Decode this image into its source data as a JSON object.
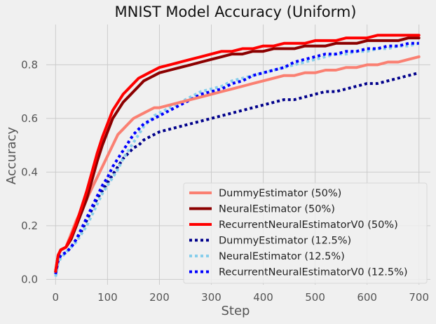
{
  "chart_data": {
    "type": "line",
    "title": "MNIST Model Accuracy (Uniform)",
    "xlabel": "Step",
    "ylabel": "Accuracy",
    "xlim": [
      -18,
      722
    ],
    "ylim": [
      -0.02,
      0.95
    ],
    "x_ticks": [
      0,
      100,
      200,
      300,
      400,
      500,
      600,
      700
    ],
    "y_ticks": [
      0.0,
      0.2,
      0.4,
      0.6,
      0.8
    ],
    "x_tick_labels": [
      "0",
      "100",
      "200",
      "300",
      "400",
      "500",
      "600",
      "700"
    ],
    "y_tick_labels": [
      "0.0",
      "0.2",
      "0.4",
      "0.6",
      "0.8"
    ],
    "grid": true,
    "legend_position": "bottom-right",
    "series": [
      {
        "name": "DummyEstimator (50%)",
        "color": "#fa8072",
        "style": "solid",
        "x": [
          0,
          5,
          10,
          20,
          30,
          40,
          50,
          60,
          70,
          80,
          90,
          100,
          110,
          120,
          130,
          140,
          150,
          160,
          170,
          180,
          190,
          200,
          220,
          240,
          260,
          280,
          300,
          320,
          340,
          360,
          380,
          400,
          420,
          440,
          460,
          480,
          500,
          520,
          540,
          560,
          580,
          600,
          620,
          640,
          660,
          680,
          700
        ],
        "y": [
          0.03,
          0.09,
          0.11,
          0.12,
          0.17,
          0.22,
          0.26,
          0.3,
          0.34,
          0.38,
          0.42,
          0.46,
          0.5,
          0.54,
          0.56,
          0.58,
          0.6,
          0.61,
          0.62,
          0.63,
          0.64,
          0.64,
          0.65,
          0.66,
          0.67,
          0.68,
          0.69,
          0.7,
          0.71,
          0.72,
          0.73,
          0.74,
          0.75,
          0.76,
          0.76,
          0.77,
          0.77,
          0.78,
          0.78,
          0.79,
          0.79,
          0.8,
          0.8,
          0.81,
          0.81,
          0.82,
          0.83
        ]
      },
      {
        "name": "NeuralEstimator (50%)",
        "color": "#8b0000",
        "style": "solid",
        "x": [
          0,
          5,
          10,
          20,
          30,
          40,
          50,
          60,
          70,
          80,
          90,
          100,
          110,
          120,
          130,
          140,
          150,
          160,
          170,
          180,
          190,
          200,
          220,
          240,
          260,
          280,
          300,
          320,
          340,
          360,
          380,
          400,
          420,
          440,
          460,
          480,
          500,
          520,
          540,
          560,
          580,
          600,
          620,
          640,
          660,
          680,
          700
        ],
        "y": [
          0.03,
          0.09,
          0.11,
          0.12,
          0.15,
          0.2,
          0.25,
          0.3,
          0.37,
          0.44,
          0.5,
          0.55,
          0.6,
          0.63,
          0.66,
          0.68,
          0.7,
          0.72,
          0.74,
          0.75,
          0.76,
          0.77,
          0.78,
          0.79,
          0.8,
          0.81,
          0.82,
          0.83,
          0.84,
          0.84,
          0.85,
          0.85,
          0.86,
          0.86,
          0.86,
          0.87,
          0.87,
          0.87,
          0.88,
          0.88,
          0.88,
          0.89,
          0.89,
          0.89,
          0.89,
          0.9,
          0.9
        ]
      },
      {
        "name": "RecurrentNeuralEstimatorV0 (50%)",
        "color": "#ff0000",
        "style": "solid",
        "x": [
          0,
          5,
          10,
          20,
          30,
          40,
          50,
          60,
          70,
          80,
          90,
          100,
          110,
          120,
          130,
          140,
          150,
          160,
          170,
          180,
          190,
          200,
          220,
          240,
          260,
          280,
          300,
          320,
          340,
          360,
          380,
          400,
          420,
          440,
          460,
          480,
          500,
          520,
          540,
          560,
          580,
          600,
          620,
          640,
          660,
          680,
          700
        ],
        "y": [
          0.03,
          0.09,
          0.11,
          0.12,
          0.16,
          0.21,
          0.27,
          0.33,
          0.4,
          0.47,
          0.53,
          0.58,
          0.63,
          0.66,
          0.69,
          0.71,
          0.73,
          0.75,
          0.76,
          0.77,
          0.78,
          0.79,
          0.8,
          0.81,
          0.82,
          0.83,
          0.84,
          0.85,
          0.85,
          0.86,
          0.86,
          0.87,
          0.87,
          0.88,
          0.88,
          0.88,
          0.89,
          0.89,
          0.89,
          0.9,
          0.9,
          0.9,
          0.91,
          0.91,
          0.91,
          0.91,
          0.91
        ]
      },
      {
        "name": "DummyEstimator (12.5%)",
        "color": "#00008b",
        "style": "dotted",
        "x": [
          0,
          5,
          10,
          20,
          30,
          40,
          50,
          60,
          70,
          80,
          90,
          100,
          110,
          120,
          130,
          140,
          150,
          160,
          170,
          180,
          190,
          200,
          220,
          240,
          260,
          280,
          300,
          320,
          340,
          360,
          380,
          400,
          420,
          440,
          460,
          480,
          500,
          520,
          540,
          560,
          580,
          600,
          620,
          640,
          660,
          680,
          700
        ],
        "y": [
          0.02,
          0.07,
          0.09,
          0.1,
          0.12,
          0.15,
          0.18,
          0.22,
          0.26,
          0.3,
          0.33,
          0.36,
          0.39,
          0.42,
          0.45,
          0.47,
          0.49,
          0.5,
          0.52,
          0.53,
          0.54,
          0.55,
          0.56,
          0.57,
          0.58,
          0.59,
          0.6,
          0.61,
          0.62,
          0.63,
          0.64,
          0.65,
          0.66,
          0.67,
          0.67,
          0.68,
          0.69,
          0.7,
          0.7,
          0.71,
          0.72,
          0.73,
          0.73,
          0.74,
          0.75,
          0.76,
          0.77
        ]
      },
      {
        "name": "NeuralEstimator (12.5%)",
        "color": "#87ceeb",
        "style": "dotted",
        "x": [
          0,
          5,
          10,
          20,
          30,
          40,
          50,
          60,
          70,
          80,
          90,
          100,
          110,
          120,
          130,
          140,
          150,
          160,
          170,
          180,
          190,
          200,
          220,
          240,
          260,
          280,
          300,
          320,
          340,
          360,
          380,
          400,
          420,
          440,
          460,
          480,
          500,
          520,
          540,
          560,
          580,
          600,
          620,
          640,
          660,
          680,
          700
        ],
        "y": [
          0.01,
          0.06,
          0.08,
          0.1,
          0.12,
          0.14,
          0.17,
          0.2,
          0.24,
          0.28,
          0.32,
          0.35,
          0.38,
          0.41,
          0.45,
          0.48,
          0.51,
          0.54,
          0.57,
          0.59,
          0.61,
          0.62,
          0.64,
          0.66,
          0.68,
          0.7,
          0.71,
          0.72,
          0.74,
          0.75,
          0.76,
          0.77,
          0.78,
          0.79,
          0.8,
          0.81,
          0.82,
          0.83,
          0.84,
          0.84,
          0.85,
          0.85,
          0.86,
          0.86,
          0.87,
          0.87,
          0.88
        ]
      },
      {
        "name": "RecurrentNeuralEstimatorV0 (12.5%)",
        "color": "#0000ff",
        "style": "dotted",
        "x": [
          0,
          5,
          10,
          20,
          30,
          40,
          50,
          60,
          70,
          80,
          90,
          100,
          110,
          120,
          130,
          140,
          150,
          160,
          170,
          180,
          190,
          200,
          220,
          240,
          260,
          280,
          300,
          320,
          340,
          360,
          380,
          400,
          420,
          440,
          460,
          480,
          500,
          520,
          540,
          560,
          580,
          600,
          620,
          640,
          660,
          680,
          700
        ],
        "y": [
          0.02,
          0.07,
          0.09,
          0.1,
          0.12,
          0.15,
          0.19,
          0.23,
          0.27,
          0.31,
          0.35,
          0.38,
          0.42,
          0.45,
          0.48,
          0.51,
          0.54,
          0.56,
          0.58,
          0.59,
          0.6,
          0.61,
          0.63,
          0.65,
          0.67,
          0.69,
          0.7,
          0.71,
          0.73,
          0.74,
          0.76,
          0.77,
          0.78,
          0.79,
          0.81,
          0.82,
          0.83,
          0.84,
          0.84,
          0.85,
          0.85,
          0.86,
          0.86,
          0.87,
          0.87,
          0.88,
          0.88
        ]
      }
    ]
  }
}
